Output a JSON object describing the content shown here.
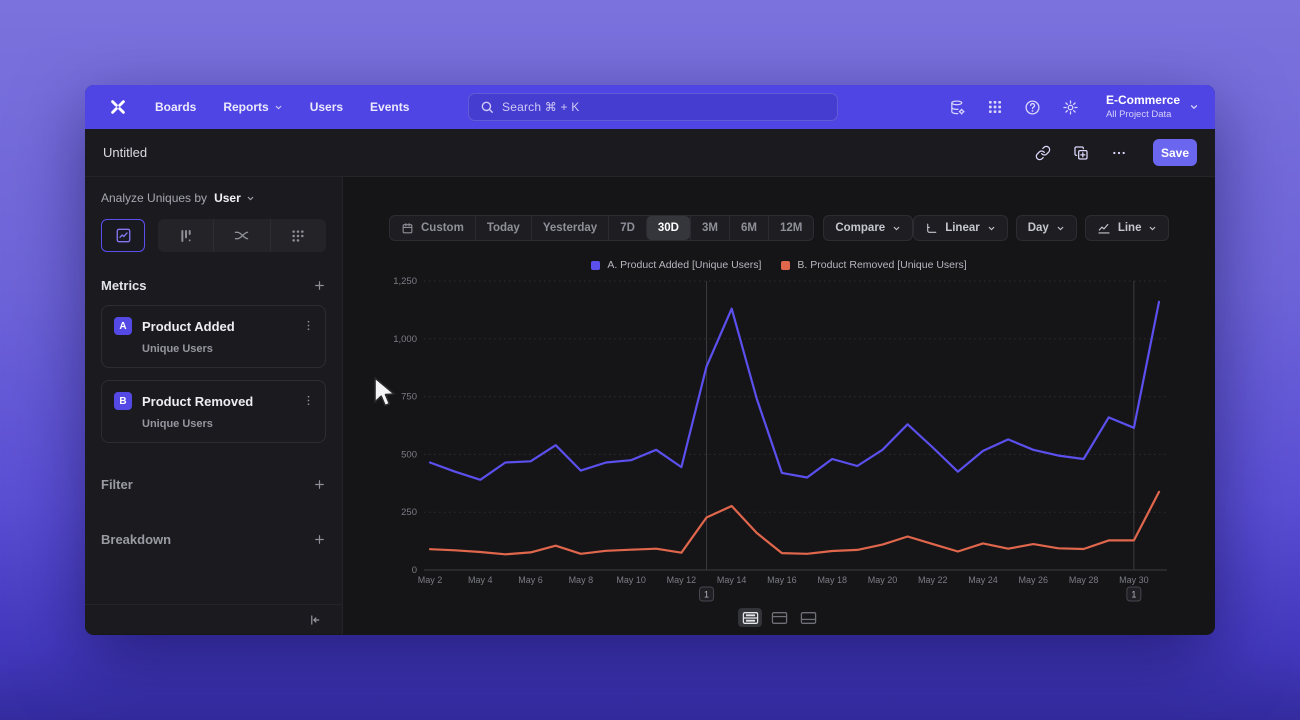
{
  "nav": {
    "items": [
      "Boards",
      "Reports",
      "Users",
      "Events"
    ],
    "search_placeholder": "Search  ⌘ + K",
    "project": {
      "name": "E-Commerce",
      "subtitle": "All Project Data"
    }
  },
  "titlebar": {
    "title": "Untitled",
    "save_label": "Save"
  },
  "sidebar": {
    "analyze_prefix": "Analyze Uniques by",
    "analyze_value": "User",
    "active_tab": "insights",
    "metrics_header": "Metrics",
    "metrics": [
      {
        "badge": "A",
        "name": "Product Added",
        "subtitle": "Unique Users"
      },
      {
        "badge": "B",
        "name": "Product Removed",
        "subtitle": "Unique Users"
      }
    ],
    "filter_label": "Filter",
    "breakdown_label": "Breakdown"
  },
  "toolbar": {
    "ranges": [
      "Custom",
      "Today",
      "Yesterday",
      "7D",
      "30D",
      "3M",
      "6M",
      "12M"
    ],
    "active_range": "30D",
    "compare_label": "Compare",
    "scale_label": "Linear",
    "interval_label": "Day",
    "chart_type_label": "Line"
  },
  "chart_data": {
    "type": "line",
    "x": [
      "May 2",
      "May 3",
      "May 4",
      "May 5",
      "May 6",
      "May 7",
      "May 8",
      "May 9",
      "May 10",
      "May 11",
      "May 12",
      "May 13",
      "May 14",
      "May 15",
      "May 16",
      "May 17",
      "May 18",
      "May 19",
      "May 20",
      "May 21",
      "May 22",
      "May 23",
      "May 24",
      "May 25",
      "May 26",
      "May 27",
      "May 28",
      "May 29",
      "May 30",
      "May 31"
    ],
    "x_label_every": 2,
    "ylim": [
      0,
      1250
    ],
    "yticks": [
      0,
      250,
      500,
      750,
      1000,
      1250
    ],
    "ytick_labels": [
      "0",
      "250",
      "500",
      "750",
      "1,000",
      "1,250"
    ],
    "grid": "horizontal-dotted",
    "legend_position": "top-center",
    "series": [
      {
        "name": "A. Product Added [Unique Users]",
        "color": "#5b50ed",
        "values": [
          465,
          425,
          390,
          465,
          470,
          540,
          430,
          465,
          475,
          520,
          445,
          880,
          1130,
          740,
          420,
          400,
          480,
          450,
          520,
          630,
          530,
          425,
          515,
          565,
          520,
          495,
          480,
          660,
          615,
          1160
        ]
      },
      {
        "name": "B. Product Removed [Unique Users]",
        "color": "#e0664c",
        "values": [
          90,
          85,
          78,
          68,
          76,
          105,
          70,
          83,
          88,
          92,
          75,
          227,
          277,
          160,
          73,
          70,
          82,
          87,
          110,
          145,
          112,
          80,
          115,
          92,
          112,
          94,
          91,
          128,
          128,
          338
        ]
      }
    ],
    "annotations": [
      {
        "x": "May 13",
        "index": 11,
        "label": "1"
      },
      {
        "x": "May 30",
        "index": 28,
        "label": "1"
      }
    ]
  }
}
